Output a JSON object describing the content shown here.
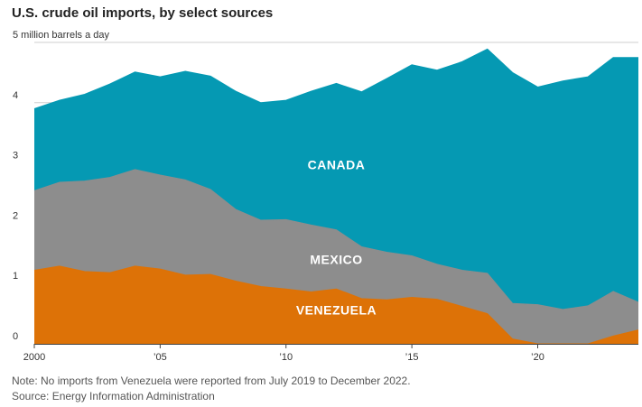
{
  "title": "U.S. crude oil imports, by select sources",
  "note": "Note: No imports from Venezuela were reported from July 2019 to December 2022.",
  "source": "Source: Energy Information Administration",
  "chart_data": {
    "type": "area",
    "stacked": true,
    "title": "U.S. crude oil imports, by select sources",
    "ylabel": "5 million barrels a day",
    "ylim": [
      0,
      5
    ],
    "xlim": [
      2000,
      2024
    ],
    "y_ticks": [
      {
        "value": 0,
        "label": "0"
      },
      {
        "value": 1,
        "label": "1"
      },
      {
        "value": 2,
        "label": "2"
      },
      {
        "value": 3,
        "label": "3"
      },
      {
        "value": 4,
        "label": "4"
      },
      {
        "value": 5,
        "label": "5 million barrels a day"
      }
    ],
    "x_ticks": [
      {
        "value": 2000,
        "label": "2000"
      },
      {
        "value": 2005,
        "label": "’05"
      },
      {
        "value": 2010,
        "label": "’10"
      },
      {
        "value": 2015,
        "label": "’15"
      },
      {
        "value": 2020,
        "label": "’20"
      }
    ],
    "x": [
      2000,
      2001,
      2002,
      2003,
      2004,
      2005,
      2006,
      2007,
      2008,
      2009,
      2010,
      2011,
      2012,
      2013,
      2014,
      2015,
      2016,
      2017,
      2018,
      2019,
      2020,
      2021,
      2022,
      2023,
      2024
    ],
    "series": [
      {
        "name": "Venezuela",
        "label": "VENEZUELA",
        "color": "#dd7207",
        "values": [
          1.22,
          1.29,
          1.2,
          1.18,
          1.29,
          1.24,
          1.14,
          1.15,
          1.04,
          0.95,
          0.91,
          0.86,
          0.91,
          0.75,
          0.73,
          0.77,
          0.74,
          0.62,
          0.5,
          0.08,
          0.0,
          0.0,
          0.0,
          0.13,
          0.23
        ]
      },
      {
        "name": "Mexico",
        "label": "MEXICO",
        "color": "#8d8d8d",
        "values": [
          1.32,
          1.39,
          1.5,
          1.58,
          1.6,
          1.56,
          1.58,
          1.41,
          1.19,
          1.1,
          1.15,
          1.11,
          0.98,
          0.86,
          0.79,
          0.69,
          0.58,
          0.6,
          0.67,
          0.59,
          0.65,
          0.57,
          0.63,
          0.74,
          0.46
        ]
      },
      {
        "name": "Canada",
        "label": "CANADA",
        "color": "#0599b3",
        "values": [
          1.36,
          1.36,
          1.44,
          1.55,
          1.62,
          1.63,
          1.8,
          1.88,
          1.96,
          1.95,
          1.98,
          2.22,
          2.43,
          2.57,
          2.88,
          3.17,
          3.22,
          3.46,
          3.72,
          3.83,
          3.61,
          3.79,
          3.8,
          3.88,
          4.06
        ]
      }
    ]
  }
}
